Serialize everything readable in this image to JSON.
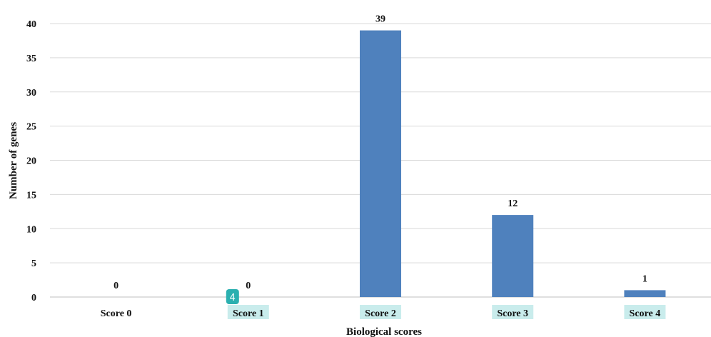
{
  "chart_data": {
    "type": "bar",
    "categories": [
      "Score 0",
      "Score 1",
      "Score 2",
      "Score 3",
      "Score 4"
    ],
    "values": [
      0,
      0,
      39,
      12,
      1
    ],
    "data_labels": [
      "0",
      "0",
      "39",
      "12",
      "1"
    ],
    "xlabel": "Biological scores",
    "ylabel": "Number of genes",
    "ylim": [
      0,
      40
    ],
    "yticks": [
      0,
      5,
      10,
      15,
      20,
      25,
      30,
      35,
      40
    ],
    "grid": true,
    "legend": "none",
    "bar_color": "#4f81bd"
  },
  "annotations": {
    "highlighted_categories": [
      "Score 1",
      "Score 2",
      "Score 3",
      "Score 4"
    ],
    "highlight_color": "#c9ecec",
    "badge": {
      "text": "4",
      "category": "Score 1",
      "color": "#2bb0b0"
    }
  }
}
